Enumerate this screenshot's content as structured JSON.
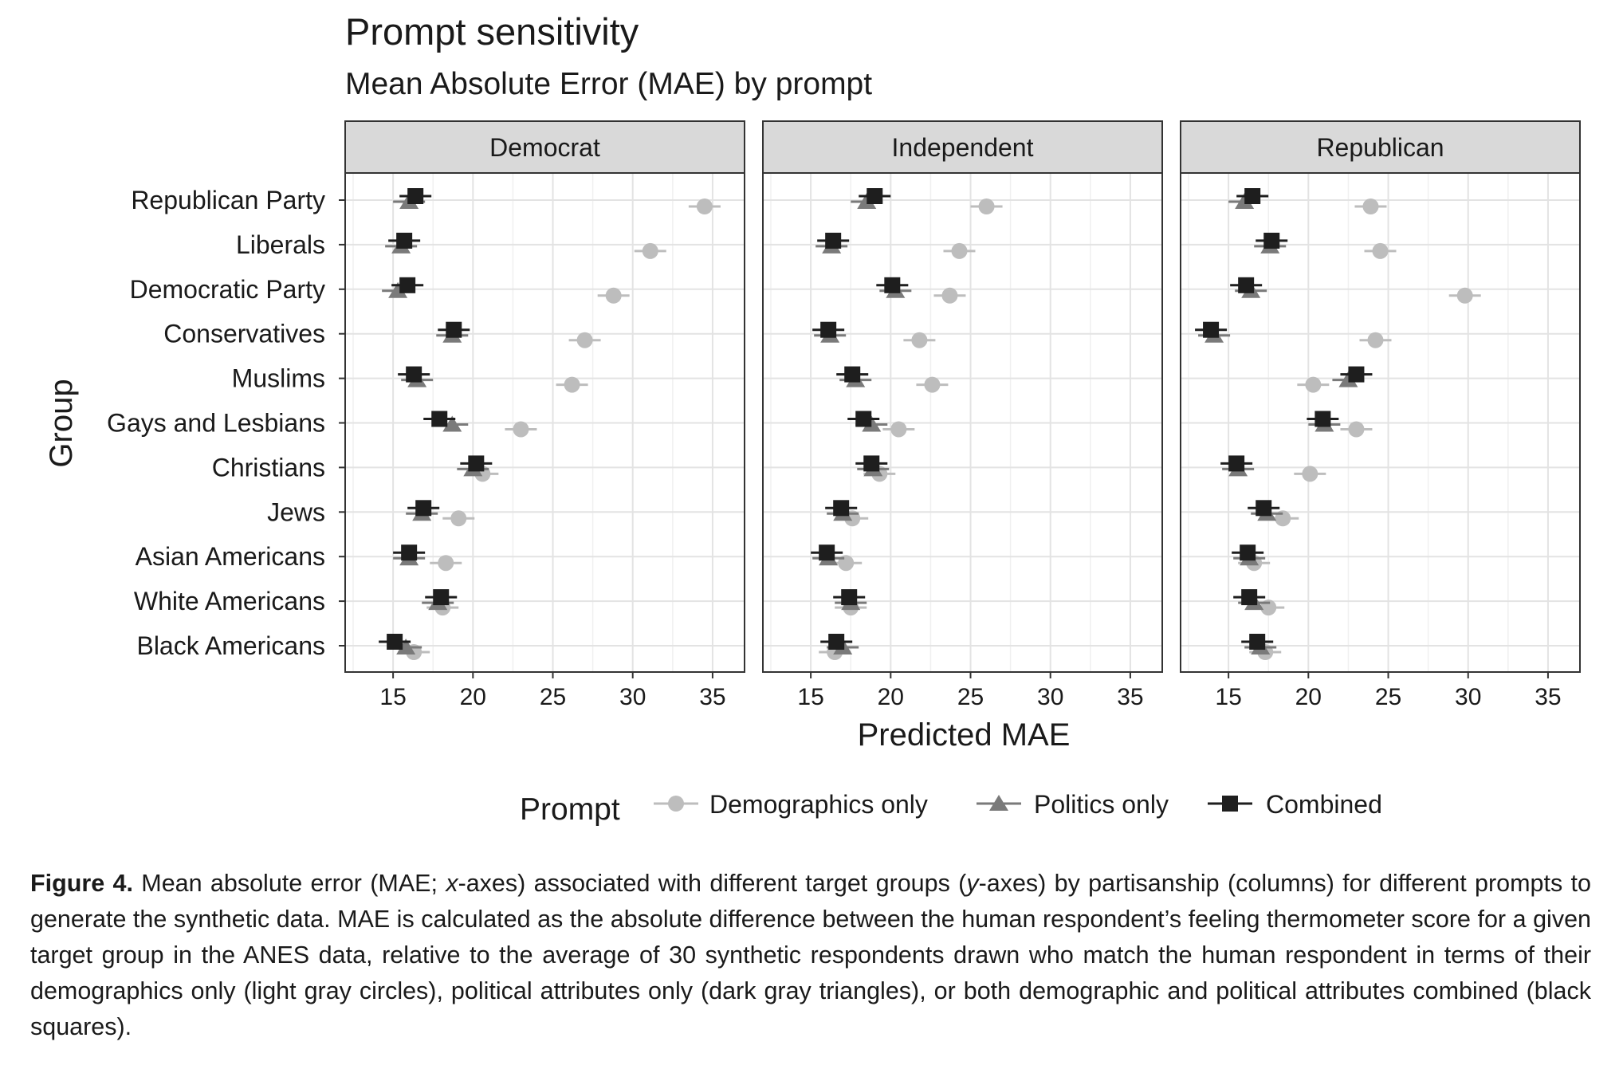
{
  "chart_data": {
    "type": "scatter",
    "title": "Prompt sensitivity",
    "subtitle": "Mean Absolute Error (MAE) by prompt",
    "xlabel": "Predicted MAE",
    "ylabel": "Group",
    "xlim": [
      12,
      37
    ],
    "xticks": [
      15,
      20,
      25,
      30,
      35
    ],
    "grid": true,
    "legend_title": "Prompt",
    "legend_position": "bottom",
    "categories": [
      "Republican Party",
      "Liberals",
      "Democratic Party",
      "Conservatives",
      "Muslims",
      "Gays and Lesbians",
      "Christians",
      "Jews",
      "Asian Americans",
      "White Americans",
      "Black Americans"
    ],
    "series": [
      {
        "name": "Demographics only",
        "marker": "circle",
        "color": "#bdbdbd"
      },
      {
        "name": "Politics only",
        "marker": "triangle",
        "color": "#7a7a7a"
      },
      {
        "name": "Combined",
        "marker": "square",
        "color": "#1e1e1e"
      }
    ],
    "panels": [
      {
        "name": "Democrat",
        "values": {
          "Demographics only": [
            34.5,
            31.1,
            28.8,
            27.0,
            26.2,
            23.0,
            20.6,
            19.1,
            18.3,
            18.1,
            16.3
          ],
          "Politics only": [
            16.0,
            15.5,
            15.3,
            18.7,
            16.5,
            18.7,
            20.0,
            16.8,
            16.0,
            17.8,
            15.8
          ],
          "Combined": [
            16.4,
            15.7,
            15.9,
            18.8,
            16.3,
            17.9,
            20.2,
            16.9,
            16.0,
            18.0,
            15.1
          ]
        }
      },
      {
        "name": "Independent",
        "values": {
          "Demographics only": [
            26.0,
            24.3,
            23.7,
            21.8,
            22.6,
            20.5,
            19.3,
            17.6,
            17.2,
            17.5,
            16.5
          ],
          "Politics only": [
            18.5,
            16.3,
            20.3,
            16.2,
            17.8,
            18.8,
            18.9,
            17.0,
            16.1,
            17.5,
            17.0
          ],
          "Combined": [
            19.0,
            16.4,
            20.1,
            16.1,
            17.6,
            18.3,
            18.8,
            16.9,
            16.0,
            17.4,
            16.6
          ]
        }
      },
      {
        "name": "Republican",
        "values": {
          "Demographics only": [
            23.9,
            24.5,
            29.8,
            24.2,
            20.3,
            23.0,
            20.1,
            18.4,
            16.6,
            17.5,
            17.3
          ],
          "Politics only": [
            16.0,
            17.6,
            16.4,
            14.1,
            22.5,
            21.0,
            15.6,
            17.4,
            16.3,
            16.6,
            17.0
          ],
          "Combined": [
            16.5,
            17.7,
            16.1,
            13.9,
            23.0,
            20.9,
            15.5,
            17.2,
            16.2,
            16.3,
            16.8
          ]
        }
      }
    ]
  },
  "caption": {
    "label": "Figure 4.",
    "segments": [
      {
        "text": " Mean absolute error (MAE; ",
        "italic": false
      },
      {
        "text": "x",
        "italic": true
      },
      {
        "text": "-axes) associated with different target groups (",
        "italic": false
      },
      {
        "text": "y",
        "italic": true
      },
      {
        "text": "-axes) by partisanship (columns) for different prompts to generate the synthetic data. MAE is calculated as the absolute difference between the human respondent’s feeling thermometer score for a given target group in the ANES data, relative to the average of 30 synthetic respondents drawn who match the human respondent in terms of their demographics only (light gray circles), political attributes only (dark gray triangles), or both demographic and political attributes combined (black squares).",
        "italic": false
      }
    ]
  }
}
